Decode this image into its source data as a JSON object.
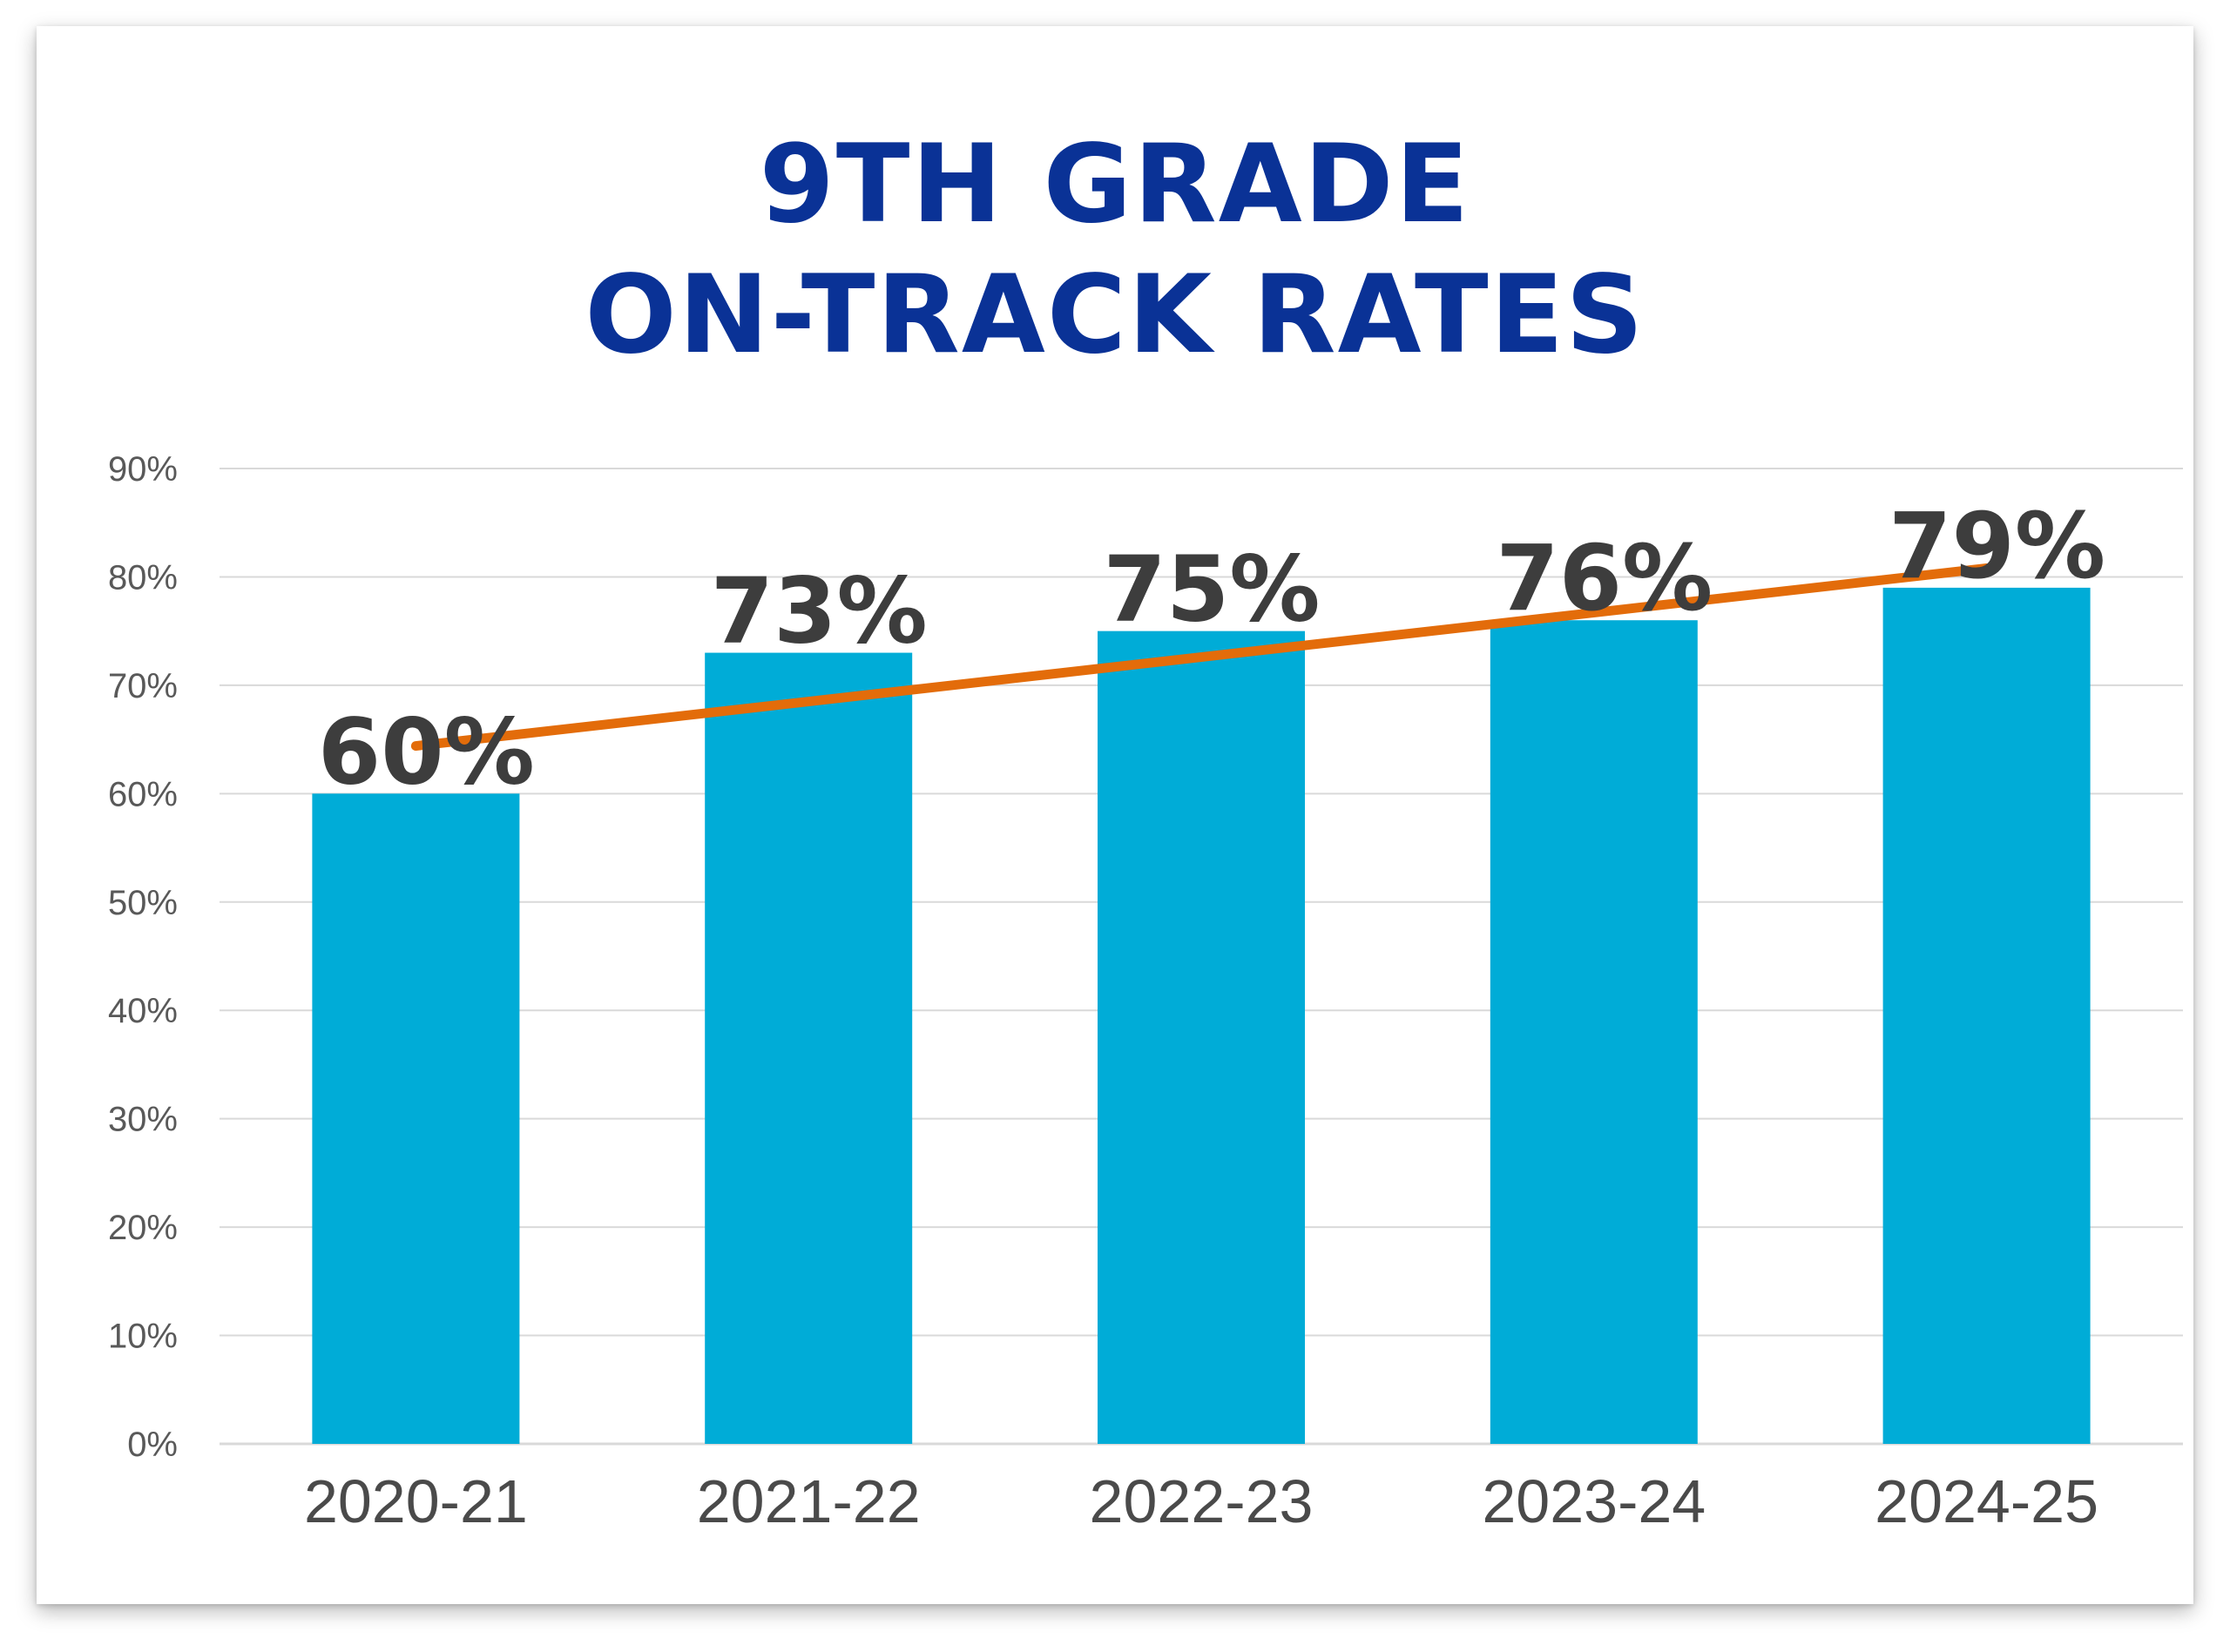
{
  "chart_data": {
    "type": "bar",
    "title_lines": [
      "9TH GRADE",
      "ON-TRACK RATES"
    ],
    "categories": [
      "2020-21",
      "2021-22",
      "2022-23",
      "2023-24",
      "2024-25"
    ],
    "values": [
      60,
      73,
      75,
      76,
      79
    ],
    "data_labels": [
      "60%",
      "73%",
      "75%",
      "76%",
      "79%"
    ],
    "y_ticks": [
      "0%",
      "10%",
      "20%",
      "30%",
      "40%",
      "50%",
      "60%",
      "70%",
      "80%",
      "90%"
    ],
    "ylim": [
      0,
      90
    ],
    "grid": true,
    "trendline": {
      "type": "linear",
      "color": "#e36c0a"
    },
    "bar_color": "#00acd7",
    "xlabel": "",
    "ylabel": ""
  },
  "colors": {
    "title": "#0a3296",
    "grid": "#d9d9d9"
  }
}
